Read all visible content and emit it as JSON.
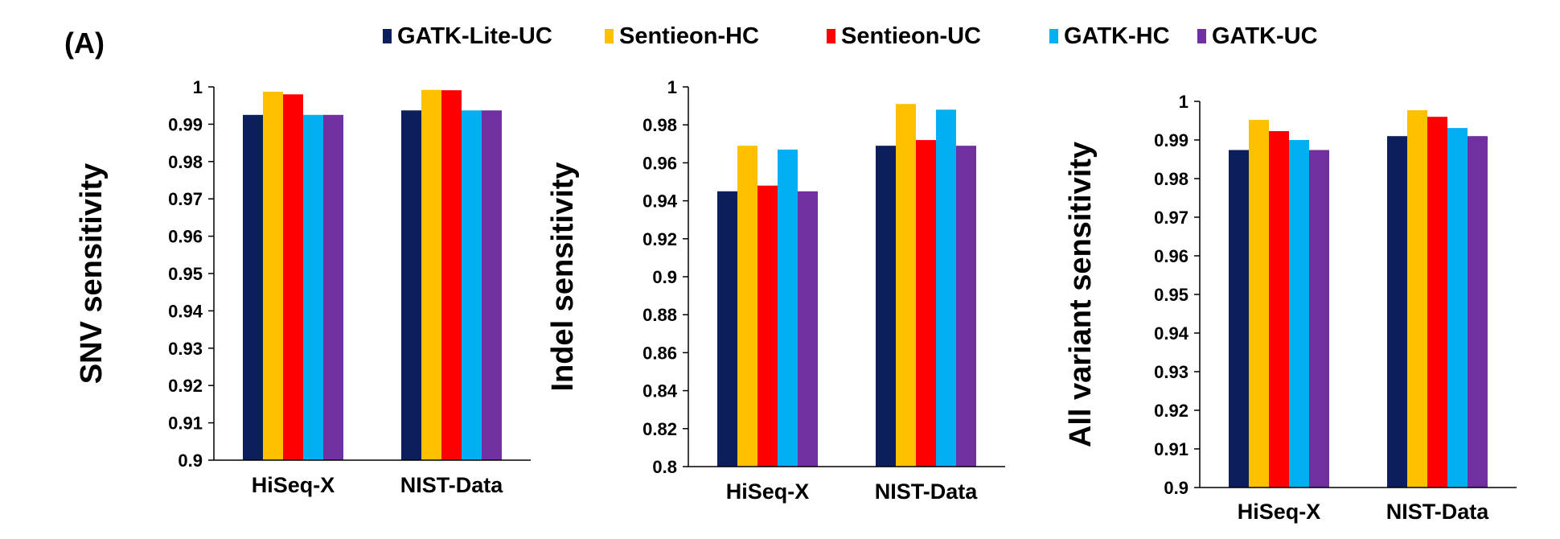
{
  "panel_label": "(A)",
  "colors": {
    "GATK-Lite-UC": "#0c1f5c",
    "Sentieon-HC": "#ffc000",
    "Sentieon-UC": "#ff0000",
    "GATK-HC": "#00b0f0",
    "GATK-UC": "#7030a0"
  },
  "legend": [
    {
      "name": "GATK-Lite-UC"
    },
    {
      "name": "Sentieon-HC"
    },
    {
      "name": "Sentieon-UC"
    },
    {
      "name": "GATK-HC"
    },
    {
      "name": "GATK-UC"
    }
  ],
  "chart_data": [
    {
      "type": "bar",
      "ylabel": "SNV sensitivity",
      "xlabel": "",
      "categories": [
        "HiSeq-X",
        "NIST-Data"
      ],
      "ylim": [
        0.9,
        1
      ],
      "yticks": [
        "0.9",
        "0.91",
        "0.92",
        "0.93",
        "0.94",
        "0.95",
        "0.96",
        "0.97",
        "0.98",
        "0.99",
        "1"
      ],
      "grid": false,
      "series": [
        {
          "name": "GATK-Lite-UC",
          "values": [
            0.9925,
            0.9937
          ]
        },
        {
          "name": "Sentieon-HC",
          "values": [
            0.9987,
            0.9992
          ]
        },
        {
          "name": "Sentieon-UC",
          "values": [
            0.998,
            0.9991
          ]
        },
        {
          "name": "GATK-HC",
          "values": [
            0.9925,
            0.9937
          ]
        },
        {
          "name": "GATK-UC",
          "values": [
            0.9925,
            0.9937
          ]
        }
      ]
    },
    {
      "type": "bar",
      "ylabel": "Indel sensitivity",
      "xlabel": "",
      "categories": [
        "HiSeq-X",
        "NIST-Data"
      ],
      "ylim": [
        0.8,
        1
      ],
      "yticks": [
        "0.8",
        "0.82",
        "0.84",
        "0.86",
        "0.88",
        "0.9",
        "0.92",
        "0.94",
        "0.96",
        "0.98",
        "1"
      ],
      "grid": false,
      "series": [
        {
          "name": "GATK-Lite-UC",
          "values": [
            0.945,
            0.969
          ]
        },
        {
          "name": "Sentieon-HC",
          "values": [
            0.969,
            0.991
          ]
        },
        {
          "name": "Sentieon-UC",
          "values": [
            0.948,
            0.972
          ]
        },
        {
          "name": "GATK-HC",
          "values": [
            0.967,
            0.988
          ]
        },
        {
          "name": "GATK-UC",
          "values": [
            0.945,
            0.969
          ]
        }
      ]
    },
    {
      "type": "bar",
      "ylabel": "All variant sensitivity",
      "xlabel": "",
      "categories": [
        "HiSeq-X",
        "NIST-Data"
      ],
      "ylim": [
        0.9,
        1
      ],
      "yticks": [
        "0.9",
        "0.91",
        "0.92",
        "0.93",
        "0.94",
        "0.95",
        "0.96",
        "0.97",
        "0.98",
        "0.99",
        "1"
      ],
      "grid": false,
      "series": [
        {
          "name": "GATK-Lite-UC",
          "values": [
            0.9874,
            0.991
          ]
        },
        {
          "name": "Sentieon-HC",
          "values": [
            0.9952,
            0.9977
          ]
        },
        {
          "name": "Sentieon-UC",
          "values": [
            0.9923,
            0.996
          ]
        },
        {
          "name": "GATK-HC",
          "values": [
            0.99,
            0.9931
          ]
        },
        {
          "name": "GATK-UC",
          "values": [
            0.9874,
            0.991
          ]
        }
      ]
    }
  ]
}
